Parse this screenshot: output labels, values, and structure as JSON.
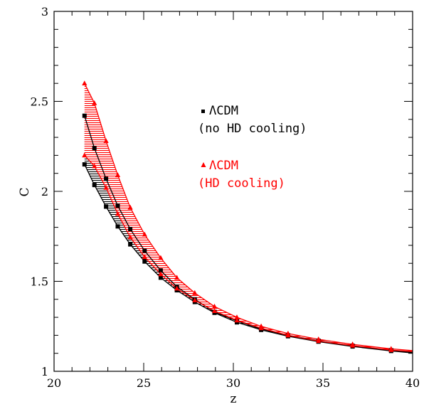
{
  "chart_data": {
    "type": "line",
    "xlabel": "z",
    "ylabel": "C",
    "xlim": [
      20,
      40
    ],
    "ylim": [
      1,
      3
    ],
    "x_ticks": [
      20,
      25,
      30,
      35,
      40
    ],
    "x_tick_labels": [
      "20",
      "25",
      "30",
      "35",
      "40"
    ],
    "y_ticks": [
      1,
      1.5,
      2,
      2.5,
      3
    ],
    "y_tick_labels": [
      "1",
      "1.5",
      "2",
      "2.5",
      "3"
    ],
    "grid": false,
    "legend_placement": "upper-right-inside",
    "series": [
      {
        "name": "ΛCDM (no HD cooling)",
        "legend_lines": [
          "ΛCDM",
          "(no HD cooling)"
        ],
        "color": "#000000",
        "marker": "square",
        "x": [
          21.7,
          22.25,
          22.9,
          23.55,
          24.25,
          25.05,
          25.95,
          26.85,
          27.85,
          28.95,
          30.2,
          31.55,
          33.05,
          34.75,
          36.65,
          38.8,
          40.0
        ],
        "upper": [
          2.42,
          2.24,
          2.07,
          1.92,
          1.79,
          1.67,
          1.56,
          1.47,
          1.4,
          1.33,
          1.28,
          1.235,
          1.2,
          1.17,
          1.142,
          1.117,
          1.105
        ],
        "lower": [
          2.15,
          2.035,
          1.915,
          1.805,
          1.705,
          1.61,
          1.52,
          1.45,
          1.385,
          1.325,
          1.272,
          1.23,
          1.195,
          1.165,
          1.138,
          1.113,
          1.102
        ]
      },
      {
        "name": "ΛCDM (HD cooling)",
        "legend_lines": [
          "ΛCDM",
          "(HD cooling)"
        ],
        "color": "#ff0000",
        "marker": "triangle",
        "x": [
          21.7,
          22.25,
          22.9,
          23.55,
          24.25,
          25.05,
          25.95,
          26.85,
          27.85,
          28.95,
          30.2,
          31.55,
          33.05,
          34.75,
          36.65,
          38.8,
          40.0
        ],
        "upper": [
          2.6,
          2.49,
          2.28,
          2.09,
          1.91,
          1.76,
          1.63,
          1.52,
          1.435,
          1.36,
          1.3,
          1.25,
          1.21,
          1.178,
          1.15,
          1.125,
          1.115
        ],
        "lower": [
          2.2,
          2.14,
          2.02,
          1.875,
          1.745,
          1.635,
          1.54,
          1.46,
          1.395,
          1.335,
          1.283,
          1.24,
          1.2,
          1.168,
          1.143,
          1.118,
          1.11
        ]
      }
    ]
  }
}
